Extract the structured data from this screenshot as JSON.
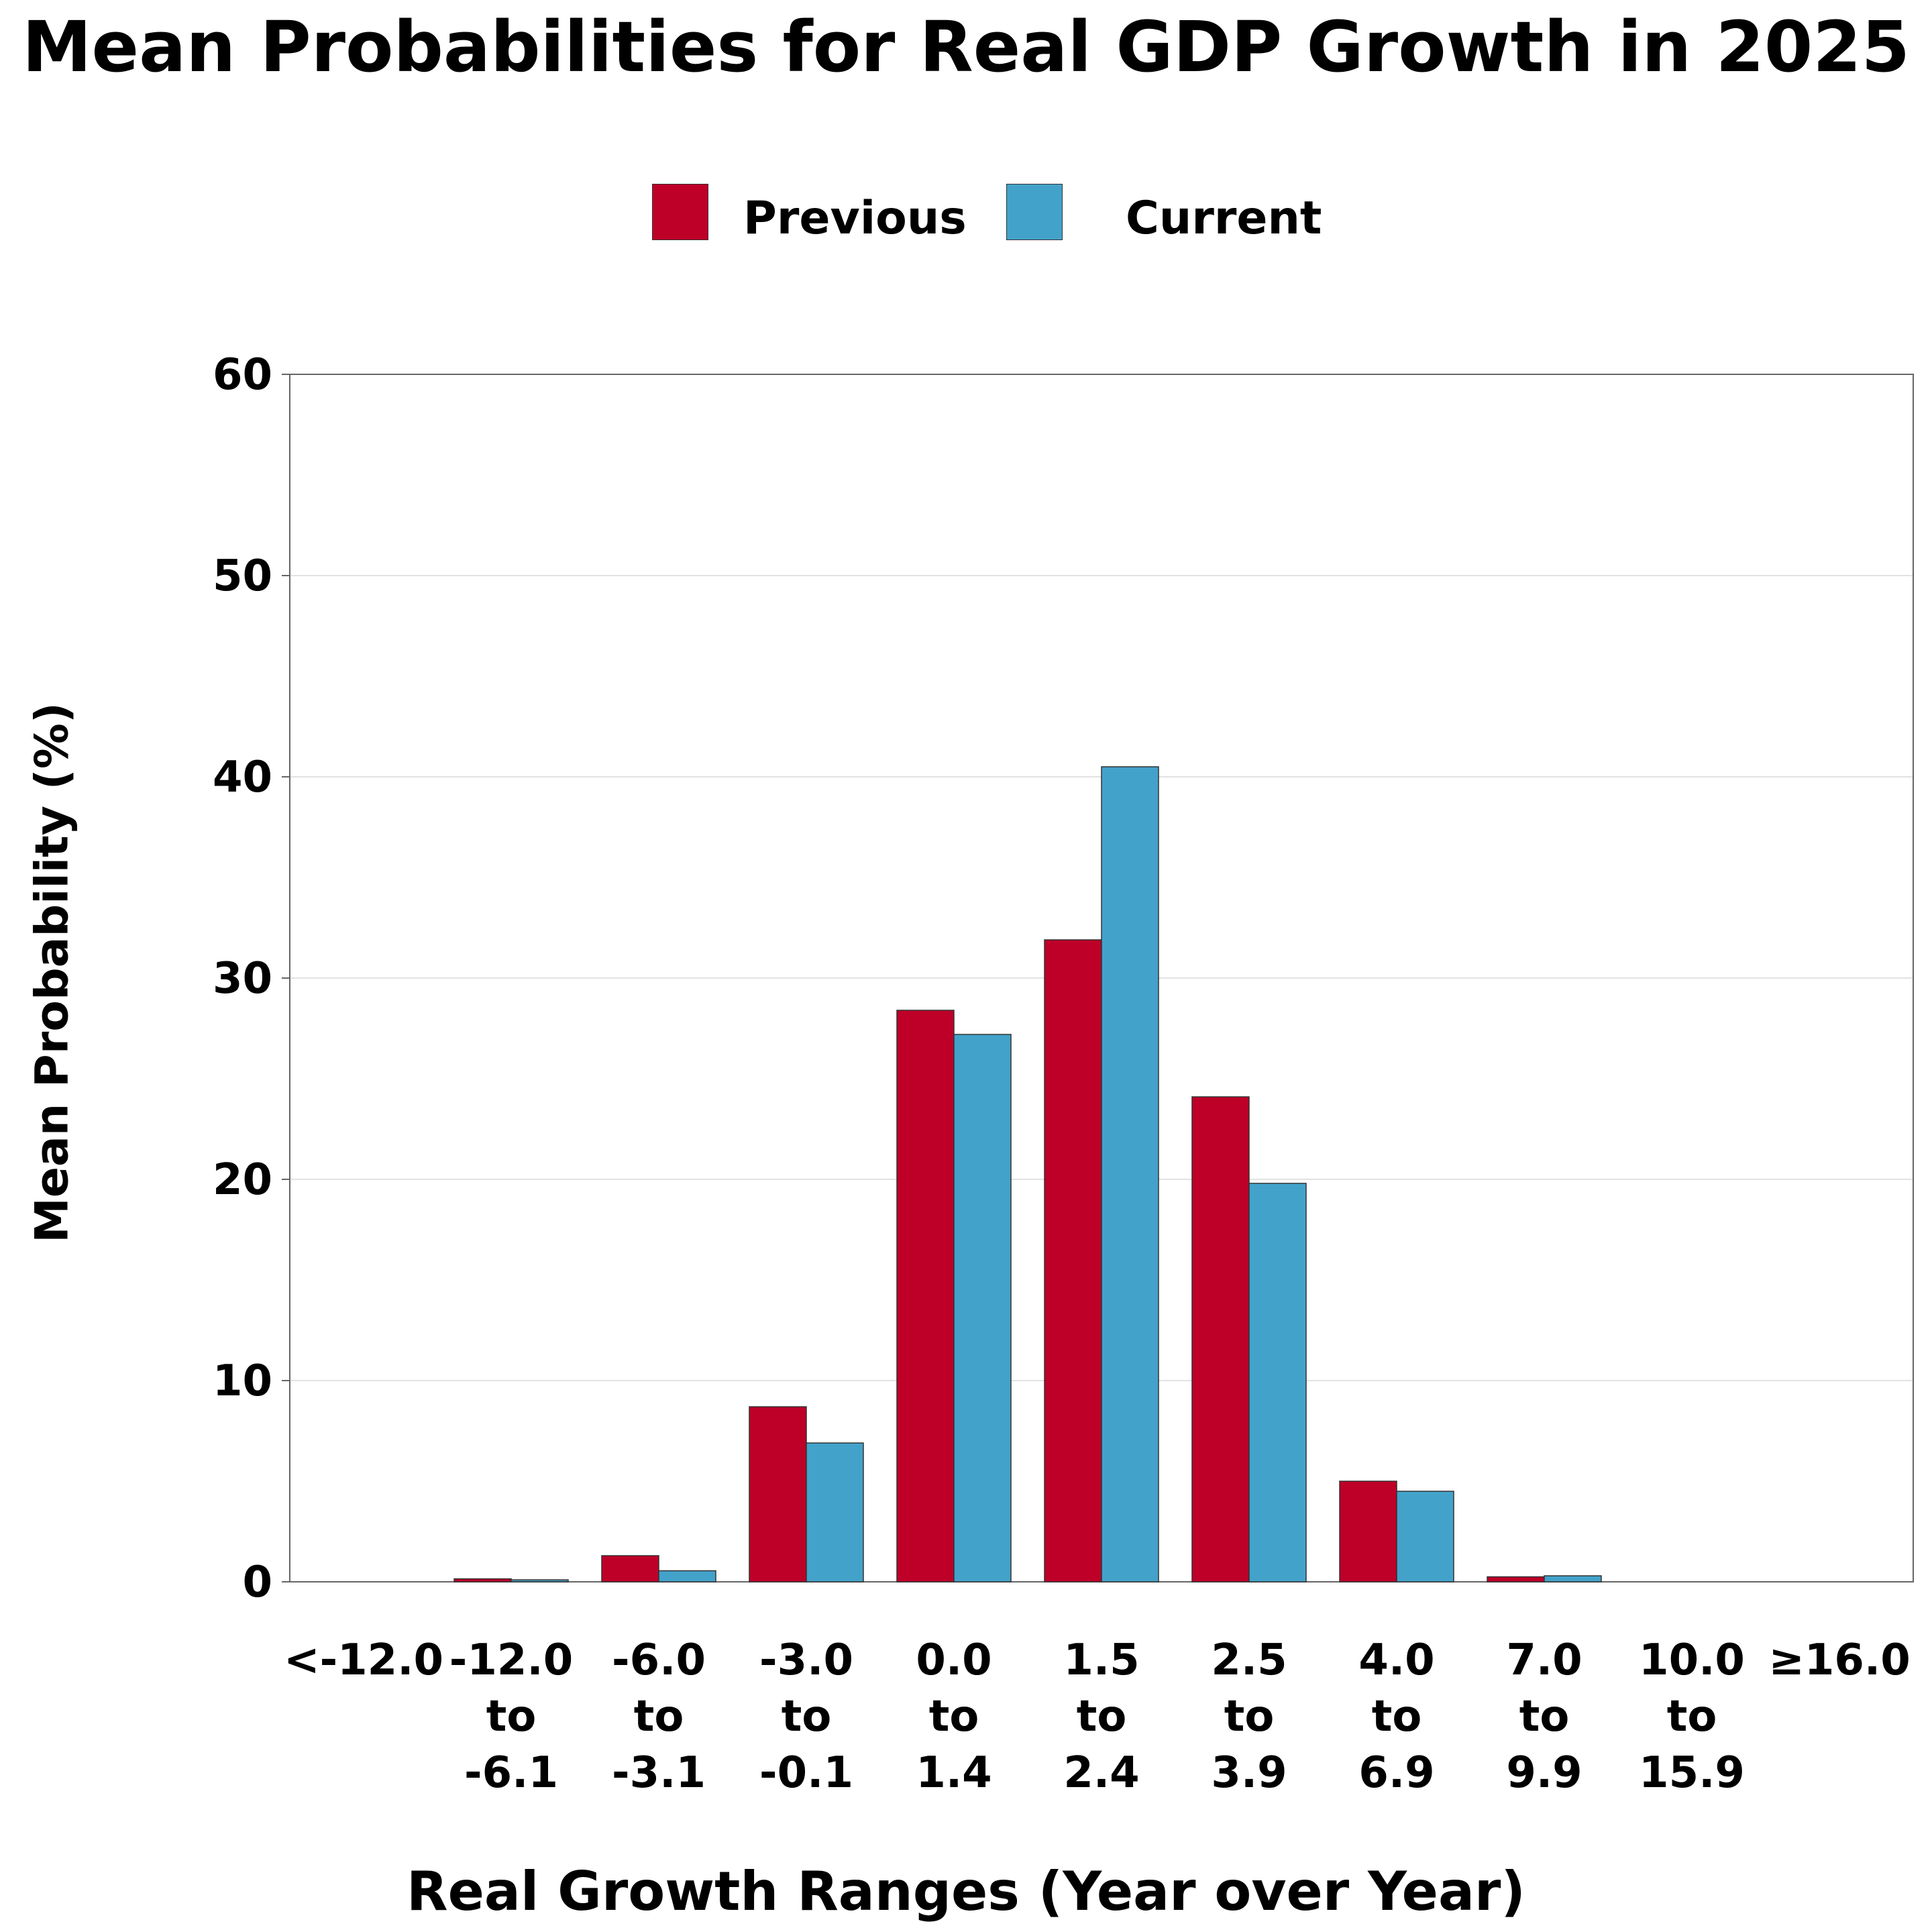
{
  "chart_data": {
    "type": "bar",
    "title": "Mean Probabilities for Real GDP Growth in 2025",
    "xlabel": "Real Growth Ranges (Year over Year)",
    "ylabel": "Mean Probability (%)",
    "ylim": [
      0,
      60
    ],
    "yticks": [
      0,
      10,
      20,
      30,
      40,
      50,
      60
    ],
    "grid": true,
    "legend_position": "top-center",
    "categories": [
      [
        "<-12.0"
      ],
      [
        "-12.0",
        "to",
        "-6.1"
      ],
      [
        "-6.0",
        "to",
        "-3.1"
      ],
      [
        "-3.0",
        "to",
        "-0.1"
      ],
      [
        "0.0",
        "to",
        "1.4"
      ],
      [
        "1.5",
        "to",
        "2.4"
      ],
      [
        "2.5",
        "to",
        "3.9"
      ],
      [
        "4.0",
        "to",
        "6.9"
      ],
      [
        "7.0",
        "to",
        "9.9"
      ],
      [
        "10.0",
        "to",
        "15.9"
      ],
      [
        "≥16.0"
      ]
    ],
    "series": [
      {
        "name": "Previous",
        "color": "#BE0028",
        "values": [
          0.0,
          0.15,
          1.3,
          8.7,
          28.4,
          31.9,
          24.1,
          5.0,
          0.25,
          0.0,
          0.0
        ]
      },
      {
        "name": "Current",
        "color": "#43A2CA",
        "values": [
          0.0,
          0.1,
          0.55,
          6.9,
          27.2,
          40.5,
          19.8,
          4.5,
          0.3,
          0.0,
          0.0
        ]
      }
    ]
  }
}
